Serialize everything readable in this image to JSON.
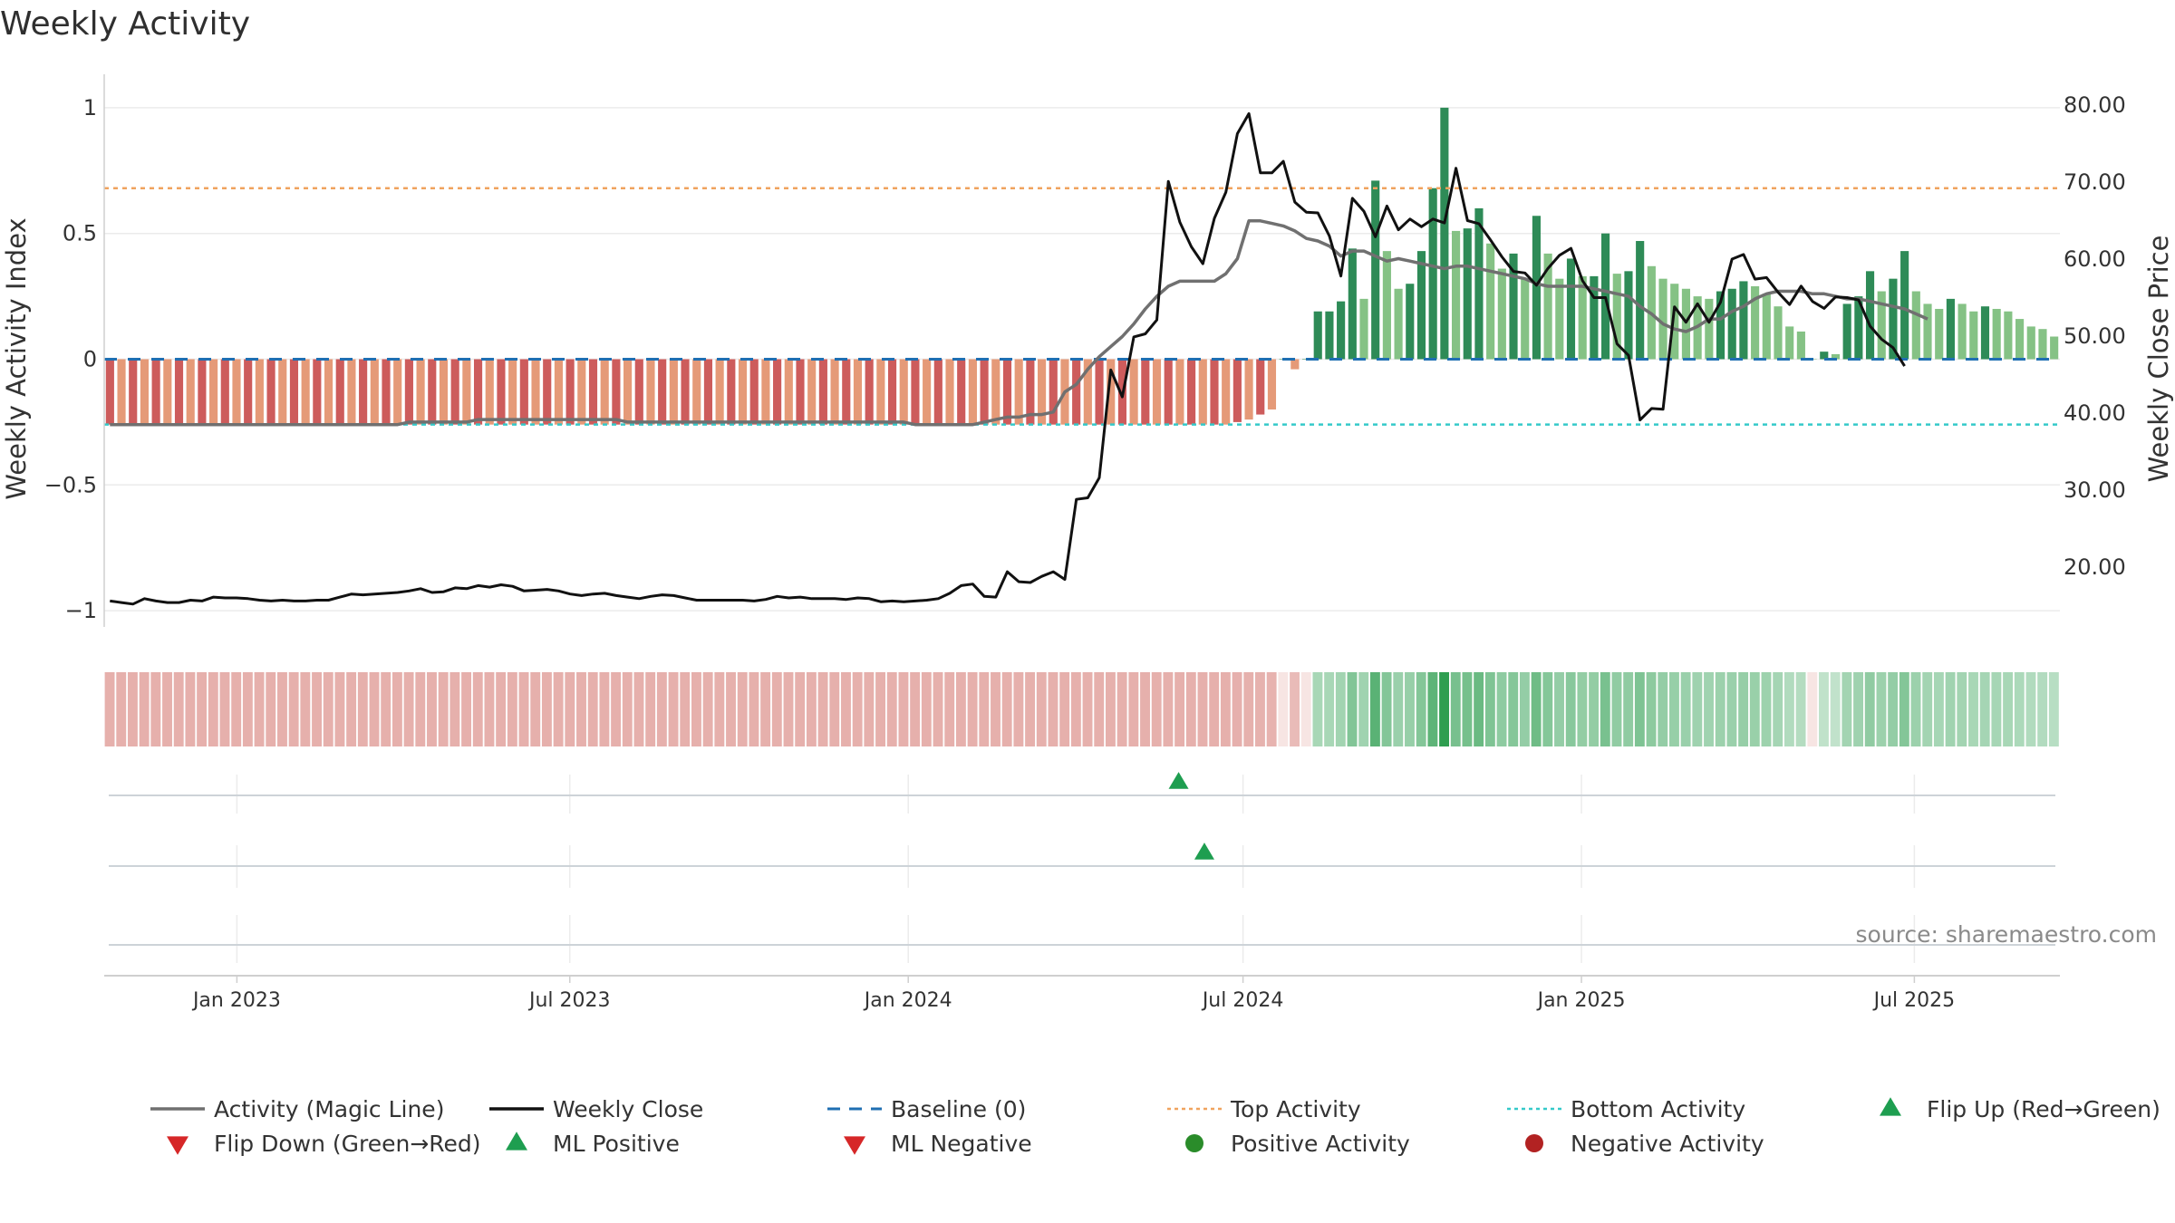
{
  "title": "Weekly Activity",
  "source": "source: sharemaestro.com",
  "colors": {
    "green_dark": "#2e8b57",
    "green_light": "#85c285",
    "red_dark": "#cd5c5c",
    "red_light": "#e59a78",
    "magic_line": "#707070",
    "close_line": "#111111",
    "baseline": "#1f6fb2",
    "top_activity": "#f0a35e",
    "bottom_activity": "#35c9c9",
    "marker_green": "#1e9e50",
    "marker_red": "#d62728",
    "dot_green": "#2a8c2a",
    "dot_red": "#b22222"
  },
  "chart_data": {
    "type": "bar",
    "x_type": "weekly dates",
    "x_start": "2022-10-24",
    "x_end": "2025-09-15",
    "left_axis": {
      "label": "Weekly Activity Index",
      "ticks": [
        1,
        0.5,
        0,
        -0.5,
        -1
      ],
      "tick_labels": [
        "1",
        "0.5",
        "0",
        "−0.5",
        "−1"
      ],
      "range": [
        -1.05,
        1.05
      ]
    },
    "right_axis": {
      "label": "Weekly Close Price",
      "ticks": [
        80,
        70,
        60,
        50,
        40,
        30,
        20
      ],
      "tick_labels": [
        "80.00",
        "70.00",
        "60.00",
        "50.00",
        "40.00",
        "30.00",
        "20.00"
      ],
      "range": [
        12.7,
        81.3
      ]
    },
    "x_ticks": [
      {
        "date": "2023-01-01",
        "label": "Jan 2023"
      },
      {
        "date": "2023-07-01",
        "label": "Jul 2023"
      },
      {
        "date": "2024-01-01",
        "label": "Jan 2024"
      },
      {
        "date": "2024-07-01",
        "label": "Jul 2024"
      },
      {
        "date": "2025-01-01",
        "label": "Jan 2025"
      },
      {
        "date": "2025-07-01",
        "label": "Jul 2025"
      }
    ],
    "reference_lines": {
      "baseline": 0,
      "top_activity": 0.68,
      "bottom_activity": -0.26
    },
    "activity_bars": [
      -0.26,
      -0.26,
      -0.26,
      -0.26,
      -0.26,
      -0.26,
      -0.26,
      -0.26,
      -0.26,
      -0.26,
      -0.26,
      -0.26,
      -0.26,
      -0.26,
      -0.26,
      -0.26,
      -0.26,
      -0.26,
      -0.26,
      -0.26,
      -0.26,
      -0.26,
      -0.26,
      -0.26,
      -0.26,
      -0.26,
      -0.26,
      -0.26,
      -0.26,
      -0.26,
      -0.26,
      -0.26,
      -0.26,
      -0.26,
      -0.26,
      -0.26,
      -0.26,
      -0.26,
      -0.26,
      -0.26,
      -0.26,
      -0.26,
      -0.26,
      -0.26,
      -0.26,
      -0.26,
      -0.26,
      -0.26,
      -0.26,
      -0.26,
      -0.26,
      -0.26,
      -0.26,
      -0.26,
      -0.26,
      -0.26,
      -0.26,
      -0.26,
      -0.26,
      -0.26,
      -0.26,
      -0.26,
      -0.26,
      -0.26,
      -0.26,
      -0.26,
      -0.26,
      -0.26,
      -0.26,
      -0.26,
      -0.26,
      -0.26,
      -0.26,
      -0.26,
      -0.26,
      -0.26,
      -0.26,
      -0.26,
      -0.26,
      -0.26,
      -0.26,
      -0.26,
      -0.26,
      -0.26,
      -0.26,
      -0.26,
      -0.26,
      -0.26,
      -0.26,
      -0.26,
      -0.26,
      -0.26,
      -0.26,
      -0.26,
      -0.26,
      -0.26,
      -0.26,
      -0.26,
      -0.25,
      -0.24,
      -0.22,
      -0.2,
      0,
      -0.04,
      0,
      0.19,
      0.19,
      0.23,
      0.44,
      0.24,
      0.71,
      0.43,
      0.28,
      0.3,
      0.43,
      0.68,
      1.0,
      0.51,
      0.52,
      0.6,
      0.46,
      0.36,
      0.42,
      0.32,
      0.57,
      0.42,
      0.32,
      0.4,
      0.33,
      0.33,
      0.5,
      0.34,
      0.35,
      0.47,
      0.37,
      0.32,
      0.3,
      0.28,
      0.25,
      0.24,
      0.27,
      0.28,
      0.31,
      0.29,
      0.26,
      0.21,
      0.13,
      0.11,
      0,
      0.03,
      0.02,
      0.22,
      0.25,
      0.35,
      0.27,
      0.32,
      0.43,
      0.27,
      0.22,
      0.2,
      0.24,
      0.22,
      0.19,
      0.21,
      0.2,
      0.19,
      0.16,
      0.13,
      0.12,
      0.09
    ],
    "weekly_close": [
      15.6,
      15.4,
      15.2,
      15.9,
      15.6,
      15.4,
      15.4,
      15.7,
      15.6,
      16.1,
      16.0,
      16.0,
      15.9,
      15.7,
      15.6,
      15.7,
      15.6,
      15.6,
      15.7,
      15.7,
      16.1,
      16.5,
      16.4,
      16.5,
      16.6,
      16.7,
      16.9,
      17.2,
      16.7,
      16.8,
      17.3,
      17.2,
      17.6,
      17.4,
      17.7,
      17.5,
      16.9,
      17.0,
      17.1,
      16.9,
      16.5,
      16.3,
      16.5,
      16.6,
      16.3,
      16.1,
      15.9,
      16.2,
      16.4,
      16.3,
      16.0,
      15.7,
      15.7,
      15.7,
      15.7,
      15.7,
      15.6,
      15.8,
      16.2,
      16.0,
      16.1,
      15.9,
      15.9,
      15.9,
      15.8,
      16.0,
      15.9,
      15.5,
      15.6,
      15.5,
      15.6,
      15.7,
      15.9,
      16.6,
      17.6,
      17.8,
      16.2,
      16.1,
      19.4,
      18.1,
      18.0,
      18.8,
      19.4,
      18.4,
      28.8,
      29.0,
      31.6,
      45.6,
      42.1,
      49.9,
      50.3,
      52.1,
      70.1,
      64.8,
      61.6,
      59.4,
      65.3,
      68.7,
      76.3,
      78.9,
      71.2,
      71.2,
      72.7,
      67.4,
      66.1,
      66.0,
      63.0,
      57.8,
      67.9,
      66.2,
      62.9,
      66.9,
      63.8,
      65.2,
      64.2,
      65.2,
      64.7,
      71.8,
      65.0,
      64.6,
      62.5,
      60.3,
      58.4,
      58.2,
      56.6,
      58.8,
      60.5,
      61.4,
      57.2,
      55.0,
      55.0,
      49.0,
      47.5,
      39.1,
      40.6,
      40.5,
      53.8,
      51.8,
      54.2,
      51.8,
      54.4,
      60.0,
      60.6,
      57.4,
      57.6,
      55.7,
      54.1,
      56.5,
      54.5,
      53.6,
      55.1,
      55.0,
      54.7,
      51.3,
      49.6,
      48.5,
      46.1
    ],
    "magic_line": [
      -0.26,
      -0.26,
      -0.26,
      -0.26,
      -0.26,
      -0.26,
      -0.26,
      -0.26,
      -0.26,
      -0.26,
      -0.26,
      -0.26,
      -0.26,
      -0.26,
      -0.26,
      -0.26,
      -0.26,
      -0.26,
      -0.26,
      -0.26,
      -0.26,
      -0.26,
      -0.26,
      -0.26,
      -0.26,
      -0.26,
      -0.25,
      -0.25,
      -0.25,
      -0.25,
      -0.25,
      -0.25,
      -0.24,
      -0.24,
      -0.24,
      -0.24,
      -0.24,
      -0.24,
      -0.24,
      -0.24,
      -0.24,
      -0.24,
      -0.24,
      -0.24,
      -0.24,
      -0.25,
      -0.25,
      -0.25,
      -0.25,
      -0.25,
      -0.25,
      -0.25,
      -0.25,
      -0.25,
      -0.25,
      -0.25,
      -0.25,
      -0.25,
      -0.25,
      -0.25,
      -0.25,
      -0.25,
      -0.25,
      -0.25,
      -0.25,
      -0.25,
      -0.25,
      -0.25,
      -0.25,
      -0.25,
      -0.26,
      -0.26,
      -0.26,
      -0.26,
      -0.26,
      -0.26,
      -0.25,
      -0.24,
      -0.23,
      -0.23,
      -0.22,
      -0.22,
      -0.21,
      -0.13,
      -0.1,
      -0.04,
      0.01,
      0.05,
      0.09,
      0.14,
      0.2,
      0.25,
      0.29,
      0.31,
      0.31,
      0.31,
      0.31,
      0.34,
      0.4,
      0.55,
      0.55,
      0.54,
      0.53,
      0.51,
      0.48,
      0.47,
      0.45,
      0.41,
      0.43,
      0.43,
      0.41,
      0.39,
      0.4,
      0.39,
      0.38,
      0.37,
      0.36,
      0.37,
      0.37,
      0.36,
      0.35,
      0.34,
      0.33,
      0.32,
      0.3,
      0.29,
      0.29,
      0.29,
      0.29,
      0.28,
      0.27,
      0.26,
      0.25,
      0.21,
      0.18,
      0.14,
      0.12,
      0.11,
      0.13,
      0.16,
      0.16,
      0.19,
      0.21,
      0.24,
      0.26,
      0.27,
      0.27,
      0.27,
      0.26,
      0.26,
      0.25,
      0.24,
      0.24,
      0.23,
      0.22,
      0.21,
      0.2,
      0.18,
      0.16
    ]
  },
  "heat_strip": {
    "label": "weekly activity heat strip"
  },
  "signals": {
    "row1_marker_date": "2024-05-27",
    "row2_marker_date": "2024-06-10"
  },
  "legend": [
    {
      "label": "Activity (Magic Line)",
      "icon": "solid-line",
      "color": "#707070"
    },
    {
      "label": "Weekly Close",
      "icon": "solid-line",
      "color": "#111111"
    },
    {
      "label": "Baseline (0)",
      "icon": "dashed-line",
      "color": "#1f6fb2"
    },
    {
      "label": "Top Activity",
      "icon": "dotted-line",
      "color": "#f0a35e"
    },
    {
      "label": "Bottom Activity",
      "icon": "dotted-line",
      "color": "#35c9c9"
    },
    {
      "label": "Flip Up (Red→Green)",
      "icon": "triangle-up",
      "color": "#1e9e50"
    },
    {
      "label": "Flip Down (Green→Red)",
      "icon": "triangle-down",
      "color": "#d62728"
    },
    {
      "label": "ML Positive",
      "icon": "triangle-up",
      "color": "#1e9e50"
    },
    {
      "label": "ML Negative",
      "icon": "triangle-down",
      "color": "#d62728"
    },
    {
      "label": "Positive Activity",
      "icon": "circle",
      "color": "#2a8c2a"
    },
    {
      "label": "Negative Activity",
      "icon": "circle",
      "color": "#b22222"
    }
  ]
}
